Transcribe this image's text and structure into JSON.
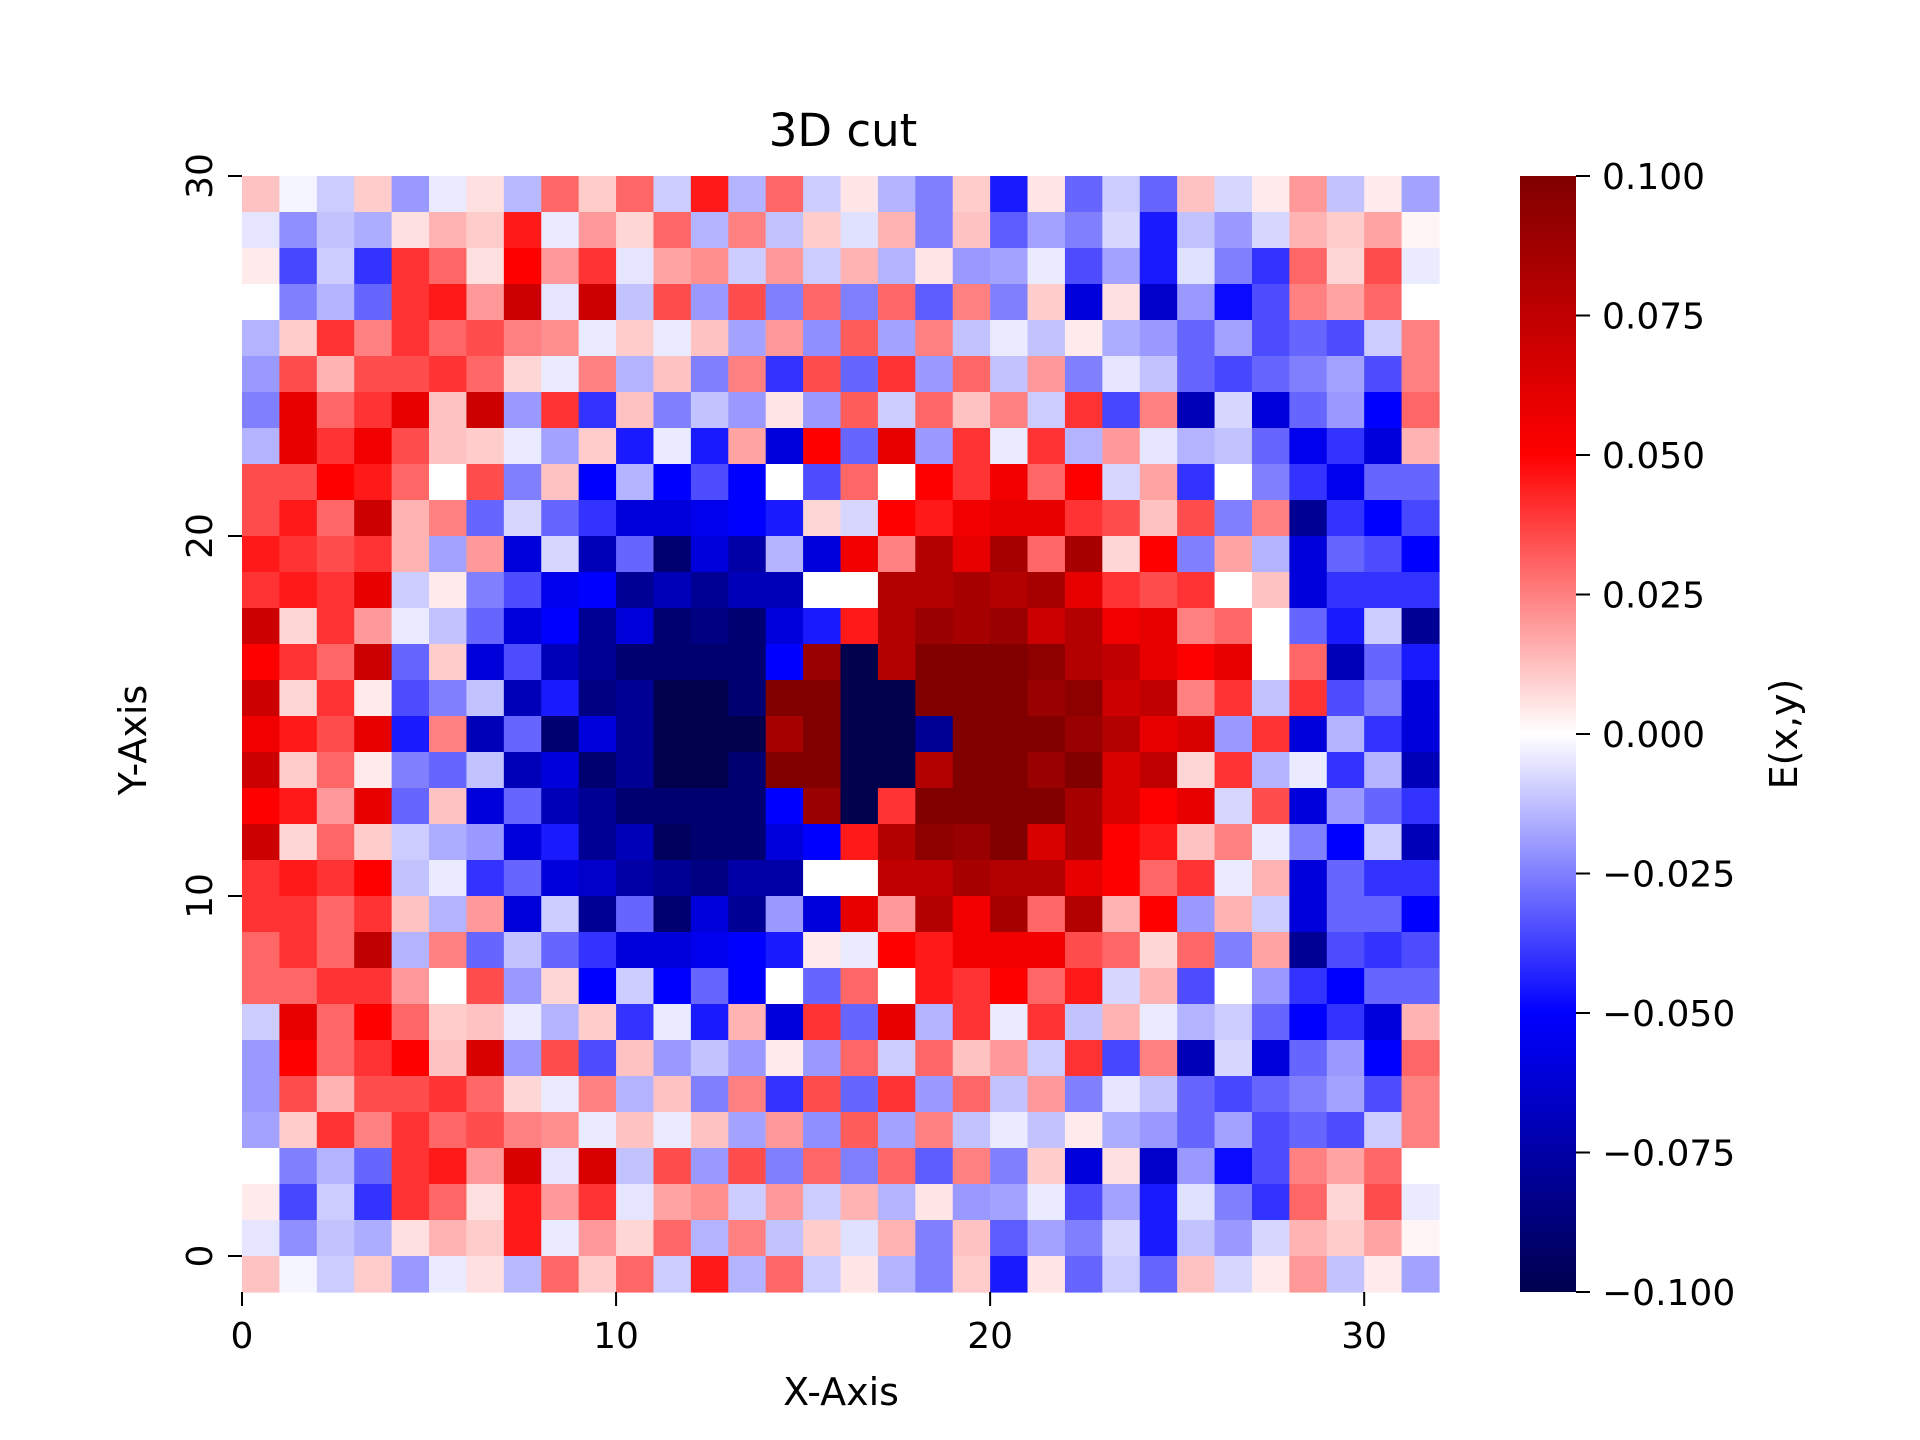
{
  "chart_data": {
    "type": "heatmap",
    "title": "3D cut",
    "xlabel": "X-Axis",
    "ylabel": "Y-Axis",
    "colorbar_label": "E(x,y)",
    "colormap": "seismic",
    "colors": {
      "min": "#00004d",
      "low": "#0000ff",
      "mid": "#ffffff",
      "high": "#ff0000",
      "max": "#800000"
    },
    "grid": false,
    "legend_placement": "colorbar-right",
    "nx": 32,
    "ny": 31,
    "xlim": [
      0,
      32
    ],
    "ylim": [
      -1,
      30
    ],
    "zlim": [
      -0.1,
      0.1
    ],
    "xticks": [
      0,
      10,
      20,
      30
    ],
    "xtick_labels": [
      "0",
      "10",
      "20",
      "30"
    ],
    "yticks": [
      0,
      10,
      20,
      30
    ],
    "ytick_labels": [
      "0",
      "10",
      "20",
      "30"
    ],
    "colorbar_ticks": [
      0.1,
      0.075,
      0.05,
      0.025,
      0,
      -0.025,
      -0.05,
      -0.075,
      -0.1
    ],
    "colorbar_tick_labels": [
      "0.100",
      "0.075",
      "0.050",
      "0.025",
      "0.000",
      "−0.025",
      "−0.050",
      "−0.075",
      "−0.100"
    ],
    "note_rows": "values[0] is the top row (y = 30) down to values[30] (y = 0); each row has 32 columns for x = 0..31",
    "values": [
      [
        0.012,
        -0.002,
        -0.01,
        0.01,
        -0.02,
        -0.004,
        0.006,
        -0.014,
        0.03,
        0.01,
        0.03,
        -0.01,
        0.045,
        -0.015,
        0.03,
        -0.01,
        0.005,
        -0.015,
        -0.025,
        0.01,
        -0.045,
        0.005,
        -0.03,
        -0.01,
        -0.03,
        0.012,
        -0.008,
        0.004,
        0.02,
        -0.012,
        0.004,
        -0.018
      ],
      [
        -0.005,
        -0.022,
        -0.012,
        -0.016,
        0.006,
        0.015,
        0.01,
        0.045,
        -0.004,
        0.02,
        0.008,
        0.03,
        -0.015,
        0.025,
        -0.012,
        0.01,
        -0.006,
        0.015,
        -0.025,
        0.012,
        -0.032,
        -0.018,
        -0.025,
        -0.008,
        -0.045,
        -0.012,
        -0.02,
        -0.008,
        0.015,
        0.01,
        0.018,
        0.002
      ],
      [
        0.004,
        -0.036,
        -0.01,
        -0.04,
        0.04,
        0.03,
        0.006,
        0.05,
        0.02,
        0.04,
        -0.005,
        0.018,
        0.022,
        -0.01,
        0.02,
        -0.01,
        0.015,
        -0.015,
        0.005,
        -0.02,
        -0.018,
        -0.004,
        -0.035,
        -0.018,
        -0.045,
        -0.006,
        -0.025,
        -0.04,
        0.03,
        0.008,
        0.035,
        -0.004
      ],
      [
        0.0,
        -0.025,
        -0.015,
        -0.03,
        0.04,
        0.045,
        0.02,
        0.07,
        -0.005,
        0.07,
        -0.012,
        0.035,
        -0.02,
        0.035,
        -0.025,
        0.03,
        -0.025,
        0.03,
        -0.032,
        0.025,
        -0.025,
        0.01,
        -0.06,
        0.006,
        -0.065,
        -0.02,
        -0.048,
        -0.035,
        0.025,
        0.018,
        0.03,
        0.0
      ],
      [
        -0.015,
        0.01,
        0.04,
        0.025,
        0.04,
        0.03,
        0.035,
        0.025,
        0.022,
        -0.004,
        0.01,
        -0.004,
        0.012,
        -0.018,
        0.02,
        -0.022,
        0.032,
        -0.018,
        0.025,
        -0.012,
        -0.004,
        -0.012,
        0.004,
        -0.016,
        -0.02,
        -0.03,
        -0.018,
        -0.035,
        -0.03,
        -0.035,
        -0.01,
        0.025
      ],
      [
        -0.02,
        0.035,
        0.015,
        0.035,
        0.035,
        0.04,
        0.03,
        0.008,
        -0.004,
        0.025,
        -0.015,
        0.012,
        -0.025,
        0.025,
        -0.04,
        0.035,
        -0.03,
        0.04,
        -0.02,
        0.03,
        -0.012,
        0.02,
        -0.025,
        -0.005,
        -0.012,
        -0.03,
        -0.036,
        -0.03,
        -0.025,
        -0.018,
        -0.035,
        0.025
      ],
      [
        -0.025,
        0.06,
        0.03,
        0.04,
        0.06,
        0.012,
        0.07,
        -0.02,
        0.04,
        -0.04,
        0.012,
        -0.025,
        -0.012,
        -0.02,
        0.005,
        -0.02,
        0.032,
        -0.01,
        0.03,
        0.012,
        0.025,
        -0.01,
        0.04,
        -0.036,
        0.025,
        -0.07,
        -0.008,
        -0.06,
        -0.03,
        -0.02,
        -0.05,
        0.03
      ],
      [
        -0.015,
        0.06,
        0.04,
        0.055,
        0.035,
        0.012,
        0.01,
        -0.004,
        -0.018,
        0.01,
        -0.045,
        -0.004,
        -0.045,
        0.018,
        -0.06,
        0.05,
        -0.03,
        0.06,
        -0.02,
        0.04,
        -0.004,
        0.04,
        -0.015,
        0.02,
        -0.005,
        -0.015,
        -0.012,
        -0.03,
        -0.055,
        -0.04,
        -0.06,
        0.015
      ],
      [
        0.035,
        0.035,
        0.05,
        0.045,
        0.03,
        0.0,
        0.035,
        -0.025,
        0.012,
        -0.05,
        -0.015,
        -0.05,
        -0.035,
        -0.05,
        0.0,
        -0.035,
        0.03,
        0.0,
        0.05,
        0.04,
        0.055,
        0.03,
        0.05,
        -0.008,
        0.018,
        -0.04,
        0.0,
        -0.025,
        -0.04,
        -0.055,
        -0.03,
        -0.03
      ],
      [
        0.035,
        0.045,
        0.03,
        0.07,
        0.015,
        0.025,
        -0.03,
        -0.008,
        -0.03,
        -0.04,
        -0.06,
        -0.06,
        -0.055,
        -0.05,
        -0.045,
        0.008,
        -0.008,
        0.05,
        0.045,
        0.055,
        0.06,
        0.06,
        0.04,
        0.035,
        0.012,
        0.035,
        -0.025,
        0.025,
        -0.08,
        -0.04,
        -0.05,
        -0.036
      ],
      [
        0.045,
        0.04,
        0.035,
        0.04,
        0.015,
        -0.018,
        0.02,
        -0.06,
        -0.008,
        -0.07,
        -0.03,
        -0.09,
        -0.06,
        -0.075,
        -0.015,
        -0.06,
        0.055,
        0.025,
        0.08,
        0.06,
        0.085,
        0.03,
        0.085,
        0.008,
        0.05,
        -0.025,
        0.018,
        -0.015,
        -0.06,
        -0.03,
        -0.035,
        -0.05
      ],
      [
        0.04,
        0.045,
        0.04,
        0.06,
        -0.01,
        0.004,
        -0.025,
        -0.035,
        -0.055,
        -0.05,
        -0.08,
        -0.07,
        -0.08,
        -0.07,
        -0.07,
        0.0,
        0.0,
        0.08,
        0.08,
        0.085,
        0.08,
        0.085,
        0.06,
        0.04,
        0.035,
        0.04,
        0.0,
        0.012,
        -0.06,
        -0.04,
        -0.04,
        -0.04
      ],
      [
        0.07,
        0.008,
        0.04,
        0.02,
        -0.004,
        -0.012,
        -0.03,
        -0.06,
        -0.05,
        -0.08,
        -0.06,
        -0.09,
        -0.085,
        -0.09,
        -0.06,
        -0.045,
        0.045,
        0.08,
        0.09,
        0.085,
        0.09,
        0.07,
        0.08,
        0.055,
        0.06,
        0.025,
        0.03,
        0.0,
        -0.03,
        -0.045,
        -0.01,
        -0.08
      ],
      [
        0.05,
        0.04,
        0.03,
        0.07,
        -0.03,
        0.01,
        -0.06,
        -0.035,
        -0.07,
        -0.08,
        -0.09,
        -0.09,
        -0.09,
        -0.09,
        -0.05,
        0.09,
        -0.1,
        0.08,
        0.1,
        0.1,
        0.1,
        0.095,
        0.08,
        0.075,
        0.06,
        0.05,
        0.06,
        0.0,
        0.03,
        -0.07,
        -0.03,
        -0.045
      ],
      [
        0.07,
        0.008,
        0.04,
        0.004,
        -0.035,
        -0.025,
        -0.012,
        -0.07,
        -0.045,
        -0.085,
        -0.08,
        -0.1,
        -0.1,
        -0.09,
        0.1,
        0.1,
        -0.1,
        -0.1,
        0.1,
        0.1,
        0.1,
        0.09,
        0.095,
        0.07,
        0.075,
        0.025,
        0.04,
        -0.012,
        0.04,
        -0.035,
        -0.025,
        -0.06
      ],
      [
        0.055,
        0.045,
        0.035,
        0.06,
        -0.045,
        0.025,
        -0.07,
        -0.03,
        -0.09,
        -0.06,
        -0.08,
        -0.1,
        -0.1,
        -0.1,
        0.085,
        0.1,
        -0.1,
        -0.1,
        -0.08,
        0.1,
        0.1,
        0.1,
        0.09,
        0.08,
        0.06,
        0.065,
        -0.02,
        0.04,
        -0.06,
        -0.015,
        -0.04,
        -0.06
      ],
      [
        0.07,
        0.01,
        0.03,
        0.004,
        -0.025,
        -0.03,
        -0.012,
        -0.07,
        -0.06,
        -0.09,
        -0.08,
        -0.1,
        -0.1,
        -0.09,
        0.1,
        0.1,
        -0.1,
        -0.1,
        0.08,
        0.1,
        0.1,
        0.09,
        0.1,
        0.065,
        0.075,
        0.008,
        0.04,
        -0.015,
        -0.004,
        -0.04,
        -0.015,
        -0.07
      ],
      [
        0.05,
        0.045,
        0.02,
        0.06,
        -0.03,
        0.012,
        -0.06,
        -0.03,
        -0.07,
        -0.08,
        -0.09,
        -0.09,
        -0.09,
        -0.09,
        -0.05,
        0.09,
        -0.1,
        0.04,
        0.1,
        0.1,
        0.1,
        0.1,
        0.085,
        0.065,
        0.05,
        0.06,
        -0.008,
        0.035,
        -0.06,
        -0.02,
        -0.03,
        -0.04
      ],
      [
        0.07,
        0.008,
        0.03,
        0.01,
        -0.01,
        -0.016,
        -0.02,
        -0.06,
        -0.045,
        -0.08,
        -0.07,
        -0.095,
        -0.09,
        -0.09,
        -0.06,
        -0.05,
        0.045,
        0.08,
        0.095,
        0.09,
        0.1,
        0.065,
        0.085,
        0.05,
        0.045,
        0.012,
        0.025,
        -0.004,
        -0.025,
        -0.05,
        -0.01,
        -0.07
      ],
      [
        0.04,
        0.045,
        0.04,
        0.05,
        -0.012,
        -0.004,
        -0.04,
        -0.03,
        -0.06,
        -0.065,
        -0.075,
        -0.08,
        -0.085,
        -0.075,
        -0.075,
        0.0,
        0.0,
        0.075,
        0.075,
        0.085,
        0.08,
        0.08,
        0.06,
        0.05,
        0.03,
        0.04,
        -0.004,
        0.015,
        -0.06,
        -0.03,
        -0.04,
        -0.04
      ],
      [
        0.04,
        0.04,
        0.03,
        0.04,
        0.012,
        -0.015,
        0.02,
        -0.06,
        -0.01,
        -0.08,
        -0.03,
        -0.09,
        -0.06,
        -0.08,
        -0.02,
        -0.06,
        0.06,
        0.02,
        0.08,
        0.055,
        0.085,
        0.03,
        0.08,
        0.015,
        0.05,
        -0.02,
        0.015,
        -0.01,
        -0.06,
        -0.03,
        -0.03,
        -0.05
      ],
      [
        0.03,
        0.04,
        0.03,
        0.075,
        -0.015,
        0.025,
        -0.03,
        -0.012,
        -0.03,
        -0.04,
        -0.06,
        -0.06,
        -0.055,
        -0.05,
        -0.045,
        0.004,
        -0.004,
        0.05,
        0.045,
        0.055,
        0.055,
        0.055,
        0.035,
        0.03,
        0.008,
        0.03,
        -0.025,
        0.018,
        -0.08,
        -0.035,
        -0.04,
        -0.035
      ],
      [
        0.03,
        0.03,
        0.04,
        0.04,
        0.02,
        0.0,
        0.035,
        -0.02,
        0.008,
        -0.05,
        -0.01,
        -0.05,
        -0.03,
        -0.05,
        0.0,
        -0.03,
        0.03,
        0.0,
        0.045,
        0.04,
        0.05,
        0.03,
        0.045,
        -0.008,
        0.015,
        -0.035,
        0.0,
        -0.02,
        -0.04,
        -0.05,
        -0.03,
        -0.03
      ],
      [
        -0.01,
        0.06,
        0.03,
        0.05,
        0.03,
        0.01,
        0.012,
        -0.004,
        -0.015,
        0.01,
        -0.04,
        -0.004,
        -0.045,
        0.015,
        -0.06,
        0.04,
        -0.03,
        0.06,
        -0.015,
        0.04,
        -0.004,
        0.04,
        -0.012,
        0.015,
        -0.004,
        -0.015,
        -0.01,
        -0.03,
        -0.05,
        -0.04,
        -0.06,
        0.015
      ],
      [
        -0.02,
        0.05,
        0.03,
        0.04,
        0.05,
        0.012,
        0.065,
        -0.02,
        0.035,
        -0.035,
        0.012,
        -0.02,
        -0.012,
        -0.02,
        0.004,
        -0.02,
        0.03,
        -0.01,
        0.03,
        0.012,
        0.02,
        -0.01,
        0.04,
        -0.036,
        0.025,
        -0.07,
        -0.008,
        -0.06,
        -0.03,
        -0.02,
        -0.05,
        0.03
      ],
      [
        -0.02,
        0.035,
        0.015,
        0.035,
        0.035,
        0.04,
        0.03,
        0.008,
        -0.004,
        0.025,
        -0.015,
        0.012,
        -0.025,
        0.025,
        -0.04,
        0.035,
        -0.03,
        0.04,
        -0.02,
        0.03,
        -0.012,
        0.02,
        -0.025,
        -0.005,
        -0.012,
        -0.03,
        -0.036,
        -0.03,
        -0.025,
        -0.018,
        -0.035,
        0.025
      ],
      [
        -0.018,
        0.01,
        0.04,
        0.025,
        0.04,
        0.03,
        0.035,
        0.025,
        0.022,
        -0.004,
        0.012,
        -0.004,
        0.012,
        -0.018,
        0.02,
        -0.022,
        0.032,
        -0.018,
        0.025,
        -0.012,
        -0.004,
        -0.012,
        0.004,
        -0.016,
        -0.02,
        -0.03,
        -0.018,
        -0.035,
        -0.03,
        -0.035,
        -0.01,
        0.025
      ],
      [
        0.0,
        -0.025,
        -0.015,
        -0.03,
        0.04,
        0.045,
        0.02,
        0.065,
        -0.005,
        0.065,
        -0.012,
        0.035,
        -0.02,
        0.035,
        -0.025,
        0.03,
        -0.025,
        0.03,
        -0.032,
        0.025,
        -0.025,
        0.01,
        -0.06,
        0.006,
        -0.065,
        -0.02,
        -0.048,
        -0.035,
        0.025,
        0.018,
        0.03,
        0.0
      ],
      [
        0.004,
        -0.036,
        -0.01,
        -0.04,
        0.04,
        0.03,
        0.006,
        0.045,
        0.02,
        0.04,
        -0.005,
        0.018,
        0.022,
        -0.01,
        0.02,
        -0.01,
        0.015,
        -0.015,
        0.005,
        -0.02,
        -0.018,
        -0.004,
        -0.035,
        -0.018,
        -0.045,
        -0.006,
        -0.025,
        -0.04,
        0.03,
        0.008,
        0.035,
        -0.004
      ],
      [
        -0.005,
        -0.022,
        -0.012,
        -0.016,
        0.006,
        0.015,
        0.01,
        0.045,
        -0.004,
        0.02,
        0.008,
        0.03,
        -0.015,
        0.025,
        -0.012,
        0.01,
        -0.006,
        0.015,
        -0.025,
        0.012,
        -0.032,
        -0.018,
        -0.025,
        -0.008,
        -0.045,
        -0.012,
        -0.02,
        -0.008,
        0.015,
        0.01,
        0.018,
        0.002
      ],
      [
        0.012,
        -0.002,
        -0.01,
        0.01,
        -0.02,
        -0.004,
        0.006,
        -0.014,
        0.03,
        0.01,
        0.03,
        -0.01,
        0.045,
        -0.015,
        0.03,
        -0.01,
        0.005,
        -0.015,
        -0.025,
        0.01,
        -0.045,
        0.005,
        -0.03,
        -0.01,
        -0.03,
        0.012,
        -0.008,
        0.004,
        0.02,
        -0.012,
        0.004,
        -0.018
      ]
    ]
  }
}
